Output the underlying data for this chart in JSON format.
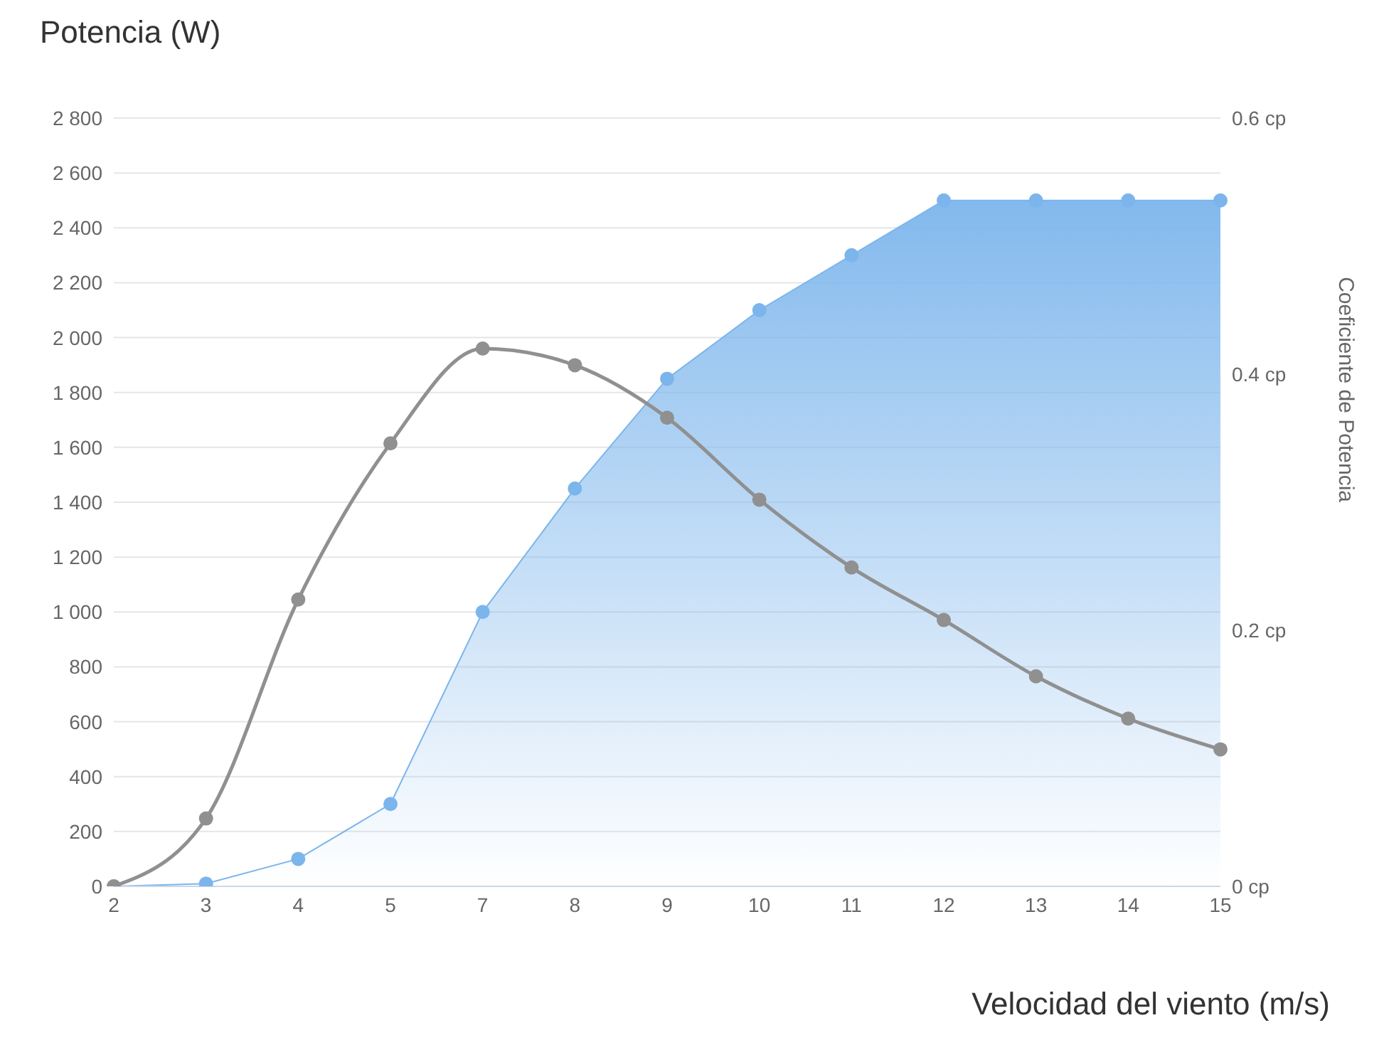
{
  "chart_data": {
    "type": "line",
    "ylabel": "Potencia (W)",
    "xlabel": "Velocidad del viento (m/s)",
    "y2label": "Coeficiente de Potencia",
    "categories": [
      "2",
      "3",
      "4",
      "5",
      "7",
      "8",
      "9",
      "10",
      "11",
      "12",
      "13",
      "14",
      "15"
    ],
    "series": [
      {
        "type": "area",
        "color": "#7cb5ec",
        "values": [
          0,
          10,
          100,
          300,
          1000,
          1450,
          1850,
          2100,
          2300,
          2500,
          2500,
          2500,
          2500
        ]
      },
      {
        "axis": "y2",
        "color": "#909090",
        "values": [
          0,
          0.053,
          0.224,
          0.346,
          0.42,
          0.407,
          0.366,
          0.302,
          0.249,
          0.208,
          0.164,
          0.131,
          0.107
        ]
      }
    ],
    "ylim": [
      0,
      2800
    ],
    "yticks": [
      0,
      200,
      400,
      600,
      800,
      {
        "value": 1000,
        "label": "1 000"
      },
      {
        "value": 1200,
        "label": "1 200"
      },
      {
        "value": 1400,
        "label": "1 400"
      },
      {
        "value": 1600,
        "label": "1 600"
      },
      {
        "value": 1800,
        "label": "1 800"
      },
      {
        "value": 2000,
        "label": "2 000"
      },
      {
        "value": 2200,
        "label": "2 200"
      },
      {
        "value": 2400,
        "label": "2 400"
      },
      {
        "value": 2600,
        "label": "2 600"
      },
      {
        "value": 2800,
        "label": "2 800"
      }
    ],
    "y2lim": [
      0,
      0.6
    ],
    "y2ticks": [
      {
        "value": 0,
        "label": "0 cp"
      },
      {
        "value": 0.2,
        "label": "0.2 cp"
      },
      {
        "value": 0.4,
        "label": "0.4 cp"
      },
      {
        "value": 0.6,
        "label": "0.6 cp"
      }
    ],
    "grid": "y",
    "marker": "circle",
    "line_style": "solid",
    "legend": false
  }
}
